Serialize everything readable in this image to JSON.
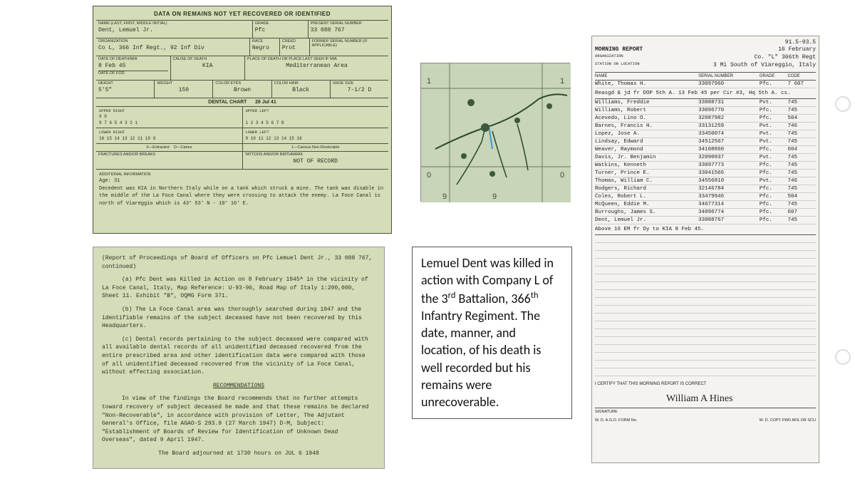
{
  "colors": {
    "card_bg": "#d4dcb8",
    "paper_bg": "#f5f3ef",
    "map_bg": "#c8d5b8",
    "text": "#2a3020"
  },
  "record": {
    "title": "DATA ON REMAINS NOT YET RECOVERED OR IDENTIFIED",
    "name_label": "NAME (Last, First, Middle Initial)",
    "name": "Dent, Lemuel Jr.",
    "grade_label": "GRADE",
    "grade": "Pfc",
    "serial_label": "PRESENT SERIAL NUMBER",
    "serial": "33 088 767",
    "org_label": "ORGANIZATION",
    "org": "Co L, 366 Inf Regt., 92 Inf Div",
    "race_label": "RACE",
    "race": "Negro",
    "creed_label": "CREED",
    "creed": "Prot",
    "former_label": "FORMER SERIAL NUMBER (if applicable)",
    "former": "",
    "dod_label": "DATE OF DEATH/MIA",
    "dod": "8 Feb 45",
    "fod_label": "DATE OF FOD",
    "fod": "",
    "cause_label": "CAUSE OF DEATH",
    "cause": "KIA",
    "place_label": "PLACE OF DEATH OR PLACE LAST SEEN IF MIA",
    "place": "Mediterranean Area",
    "height_label": "HEIGHT",
    "height": "5'5\"",
    "weight_label": "WEIGHT",
    "weight": "150",
    "eyes_label": "COLOR EYES",
    "eyes": "Brown",
    "hair_label": "COLOR HAIR",
    "hair": "Black",
    "shoe_label": "SHOE SIZE",
    "shoe": "7-1/2 D",
    "dental_hdr": "DENTAL CHART",
    "dental_date": "26 Jul 41",
    "upper_right_label": "UPPER RIGHT",
    "upper_right_marks": "X                 0",
    "upper_right_nums": "8 7 6 5 4 3 2 1",
    "upper_left_label": "UPPER LEFT",
    "upper_left_nums": "1 2 3 4 5 6 7 8",
    "lower_right_label": "LOWER RIGHT",
    "lower_right_nums": "16 15 14 13 12 11 10 9",
    "lower_left_label": "LOWER LEFT",
    "lower_left_nums": "9 10 11 12 13 14 15 16",
    "legend_x": "X—Extracted",
    "legend_o": "O—Caries",
    "legend_1": "1—Carious Non-Restorable",
    "fractures_label": "FRACTURES AND/OR BREAKS",
    "tattoos_label": "TATTOOS AND/OR BIRTHMARK",
    "tattoos_val": "NOT OF RECORD",
    "addl_label": "ADDITIONAL INFORMATION",
    "age": "Age: 31",
    "narrative": "Decedent was KIA in Northern Italy while on a tank which struck a mine. The tank was disable in the middle of the La Foce Canal where they were crossing to attack the enemy. La Foce Canal is north of Viareggio which is 43° 53' N - 10° 16' E."
  },
  "roster": {
    "file_no": "91.5–93.5",
    "hdr_title": "MORNING REPORT",
    "hdr_date": "16 February",
    "hdr_org_label": "ORGANIZATION",
    "hdr_org": "Co. \"L\"       366th Regt",
    "hdr_sta_label": "STATION OR LOCATION",
    "hdr_sta": "3 Mi South of Viareggio, Italy",
    "col_name": "NAME",
    "col_sn": "SERIAL NUMBER",
    "col_gr": "GRADE",
    "col_rm": "CODE",
    "first": {
      "name": "White, Thomas H.",
      "sn": "33097960",
      "gr": "Pfc.",
      "rm": "7 607"
    },
    "first_note": "Reasgd & jd fr DOP 5th A. 13 Feb 45 per Cir #3, Hq 5th A. cs.",
    "rows": [
      {
        "name": "Williams, Freddie",
        "sn": "33088731",
        "gr": "Pvt.",
        "rm": "745"
      },
      {
        "name": "Williams, Robert",
        "sn": "33096770",
        "gr": "Pfc.",
        "rm": "745"
      },
      {
        "name": "Acevedo, Lino O.",
        "sn": "32087982",
        "gr": "Pfc.",
        "rm": "504"
      },
      {
        "name": "Barnes, Francis H.",
        "sn": "33131259",
        "gr": "Pvt.",
        "rm": "746"
      },
      {
        "name": "Lopez, Jose A.",
        "sn": "33450074",
        "gr": "Pvt.",
        "rm": "745"
      },
      {
        "name": "Lindsay, Edward",
        "sn": "34512567",
        "gr": "Pvt.",
        "rm": "745"
      },
      {
        "name": "Weaver, Raymond",
        "sn": "34108860",
        "gr": "Pfc.",
        "rm": "604"
      },
      {
        "name": "Davis, Jr. Benjamin",
        "sn": "32090937",
        "gr": "Pvt.",
        "rm": "745"
      },
      {
        "name": "Watkins, Kenneth",
        "sn": "33097773",
        "gr": "Pfc.",
        "rm": "745"
      },
      {
        "name": "Turner, Prince E.",
        "sn": "33041566",
        "gr": "Pfc.",
        "rm": "745"
      },
      {
        "name": "Thomas, William C.",
        "sn": "34556810",
        "gr": "Pvt.",
        "rm": "746"
      },
      {
        "name": "Rodgers, Richard",
        "sn": "32146784",
        "gr": "Pfc.",
        "rm": "745"
      },
      {
        "name": "Coles, Robert L.",
        "sn": "33479946",
        "gr": "Pfc.",
        "rm": "504"
      },
      {
        "name": "McQueen, Eddie M.",
        "sn": "34677314",
        "gr": "Pfc.",
        "rm": "745"
      },
      {
        "name": "Burroughs, James S.",
        "sn": "34096774",
        "gr": "Pfc.",
        "rm": "607"
      },
      {
        "name": "Dent, Lemuel Jr.",
        "sn": "33088767",
        "gr": "Pfc.",
        "rm": "745"
      }
    ],
    "footer_note": "Above 16 EM fr Dy to KIA 8 Feb 45.",
    "cert": "I CERTIFY THAT THIS MORNING REPORT IS CORRECT",
    "sig_label": "SIGNATURE",
    "signature": "William A Hines",
    "form_note": "W. D. A.G.O. FORM No.",
    "copy_note": "W. D. COPY FWD AFE OR SCU"
  },
  "report": {
    "header": "(Report of Proceedings of Board of Officers on Pfc Lemuel Dent Jr., 33 088 767, continued)",
    "p_a": "(a) Pfc Dent was Killed in Action on 8 February 1945ᴬ in the vicinity of La Foce Canal, Italy, Map Reference: U-93-96, Road Map of Italy 1:200,000, Sheet 11. Exhibit \"B\", OQMG Form 371.",
    "p_b": "(b) The La Foce Canal area was thoroughly searched during 1947 and the identifiable remains of the subject deceased have not been recovered by this Headquarters.",
    "p_c": "(c) Dental records pertaining to the subject deceased were compared with all available dental records of all unidentified deceased recovered from the entire prescribed area and other identification data were compared with those of all unidentified deceased recovered from the vicinity of La Foce Canal, without effecting association.",
    "rec_hdr": "RECOMMENDATIONS",
    "rec": "In view of the findings the Board recommends that no further attempts toward recovery of subject deceased be made and that these remains be declared \"Non-Recoverable\", in accordance with provision of Letter, The Adjutant General's Office, file AGAO-S 293.9 (27 March 1947) D-M, Subject: \"Establishment of Boards of Review for Identification of Unknown Dead Overseas\", dated 9 April 1947.",
    "adj": "The Board adjourned at 1730 hours on JUL 6 1948"
  },
  "caption": {
    "text_parts": [
      "Lemuel Dent was killed in action with Company L of the 3",
      "rd",
      " Battalion, 366",
      "th",
      " Infantry Regiment.  The date, manner, and location, of his death is well recorded but his remains were unrecoverable."
    ]
  }
}
